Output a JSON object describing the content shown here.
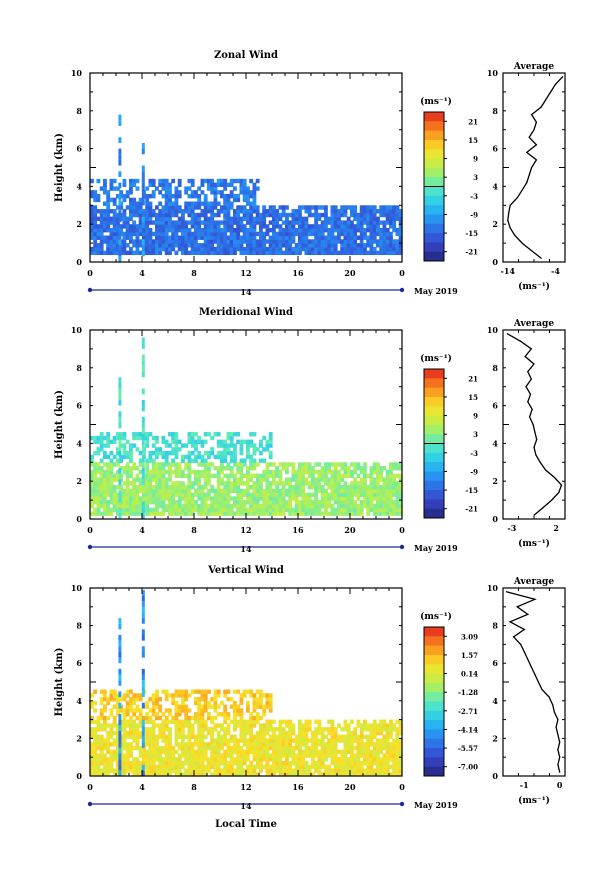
{
  "chart_data": [
    {
      "type": "heatmap",
      "title": "Zonal Wind",
      "ylabel": "Height (km)",
      "xlabel": "",
      "date_label": "May 2019",
      "day_label": "14",
      "x_ticks": [
        "0",
        "4",
        "8",
        "12",
        "16",
        "20",
        "0"
      ],
      "ylim": [
        0,
        10
      ],
      "y_ticks": [
        "0",
        "2",
        "4",
        "6",
        "8",
        "10"
      ],
      "colorbar": {
        "unit": "(ms⁻¹)",
        "ticks": [
          "21",
          "15",
          "9",
          "3",
          "-3",
          "-9",
          "-15",
          "-21"
        ],
        "range": [
          -24,
          24
        ]
      },
      "field": {
        "description_regions": [
          {
            "x_hours": [
              0,
              24
            ],
            "height_km": [
              0.5,
              3.0
            ],
            "value_ms": -14
          },
          {
            "x_hours": [
              0,
              13
            ],
            "height_km": [
              3.0,
              4.2
            ],
            "value_ms": -13
          }
        ]
      },
      "profile": {
        "title": "Average",
        "xlabel": "(ms⁻¹)",
        "x_ticks": [
          "-14",
          "-4"
        ],
        "xlim": [
          -15,
          -2
        ],
        "y_ticks": [
          "0",
          "2",
          "4",
          "6",
          "8",
          "10"
        ],
        "ylim": [
          0,
          10
        ],
        "height_km": [
          0.2,
          0.6,
          1.0,
          1.4,
          1.8,
          2.2,
          2.6,
          3.0,
          3.4,
          3.8,
          4.2,
          4.6,
          5.0,
          5.4,
          5.8,
          6.2,
          6.6,
          7.0,
          7.4,
          7.8,
          8.2,
          8.6,
          9.0,
          9.4,
          9.8
        ],
        "value_ms": [
          -7,
          -9,
          -11,
          -12.5,
          -13.5,
          -14,
          -13.8,
          -13.5,
          -12,
          -11,
          -10,
          -9.5,
          -9,
          -8,
          -10,
          -8,
          -9.5,
          -8.5,
          -8,
          -9,
          -7,
          -6,
          -5,
          -4,
          -2.5
        ]
      }
    },
    {
      "type": "heatmap",
      "title": "Meridional Wind",
      "ylabel": "Height (km)",
      "xlabel": "",
      "date_label": "May 2019",
      "day_label": "14",
      "x_ticks": [
        "0",
        "4",
        "8",
        "12",
        "16",
        "20",
        "0"
      ],
      "ylim": [
        0,
        10
      ],
      "y_ticks": [
        "0",
        "2",
        "4",
        "6",
        "8",
        "10"
      ],
      "colorbar": {
        "unit": "(ms⁻¹)",
        "ticks": [
          "21",
          "15",
          "9",
          "3",
          "-3",
          "-9",
          "-15",
          "-21"
        ],
        "range": [
          -24,
          24
        ]
      },
      "field": {
        "description_regions": [
          {
            "x_hours": [
              0,
              24
            ],
            "height_km": [
              0.2,
              3.0
            ],
            "value_ms": 4
          },
          {
            "x_hours": [
              0,
              14
            ],
            "height_km": [
              3.0,
              4.5
            ],
            "value_ms": -2
          }
        ]
      },
      "profile": {
        "title": "Average",
        "xlabel": "(ms⁻¹)",
        "x_ticks": [
          "-3",
          "2"
        ],
        "xlim": [
          -4,
          3
        ],
        "y_ticks": [
          "0",
          "2",
          "4",
          "6",
          "8",
          "10"
        ],
        "ylim": [
          0,
          10
        ],
        "height_km": [
          0.2,
          0.6,
          1.0,
          1.4,
          1.8,
          2.2,
          2.6,
          3.0,
          3.4,
          3.8,
          4.2,
          4.6,
          5.0,
          5.4,
          5.8,
          6.2,
          6.6,
          7.0,
          7.4,
          7.8,
          8.2,
          8.6,
          9.0,
          9.4,
          9.8
        ],
        "value_ms": [
          -0.5,
          0.5,
          1.5,
          2.3,
          2.6,
          1.8,
          0.8,
          0.2,
          -0.3,
          -0.5,
          -0.2,
          -0.4,
          -0.6,
          -1.0,
          -0.7,
          -1.2,
          -0.9,
          -1.4,
          -0.8,
          -1.2,
          -0.5,
          -1.5,
          -0.8,
          -2.0,
          -3.5
        ]
      }
    },
    {
      "type": "heatmap",
      "title": "Vertical Wind",
      "ylabel": "Height (km)",
      "xlabel": "Local Time",
      "date_label": "May 2019",
      "day_label": "14",
      "x_ticks": [
        "0",
        "4",
        "8",
        "12",
        "16",
        "20",
        "0"
      ],
      "ylim": [
        0,
        10
      ],
      "y_ticks": [
        "0",
        "2",
        "4",
        "6",
        "8",
        "10"
      ],
      "colorbar": {
        "unit": "(ms⁻¹)",
        "ticks": [
          "3.09",
          "1.57",
          "0.14",
          "-1.28",
          "-2.71",
          "-4.14",
          "-5.57",
          "-7.00"
        ],
        "range": [
          -7.7,
          3.8
        ]
      },
      "field": {
        "description_regions": [
          {
            "x_hours": [
              0,
              24
            ],
            "height_km": [
              0.0,
              3.0
            ],
            "value_ms": 0.6
          },
          {
            "x_hours": [
              0,
              14
            ],
            "height_km": [
              3.0,
              4.4
            ],
            "value_ms": 1.2
          }
        ]
      },
      "profile": {
        "title": "Average",
        "xlabel": "(ms⁻¹)",
        "x_ticks": [
          "-1",
          "0"
        ],
        "xlim": [
          -1.6,
          0.15
        ],
        "y_ticks": [
          "0",
          "2",
          "4",
          "6",
          "8",
          "10"
        ],
        "ylim": [
          0,
          10
        ],
        "height_km": [
          0.2,
          0.6,
          1.0,
          1.4,
          1.8,
          2.2,
          2.6,
          3.0,
          3.4,
          3.8,
          4.2,
          4.6,
          5.0,
          5.4,
          5.8,
          6.2,
          6.6,
          7.0,
          7.4,
          7.8,
          8.2,
          8.6,
          9.0,
          9.4,
          9.8
        ],
        "value_ms": [
          0.0,
          -0.05,
          0.0,
          -0.05,
          0.0,
          -0.05,
          -0.1,
          -0.05,
          -0.15,
          -0.2,
          -0.3,
          -0.5,
          -0.6,
          -0.7,
          -0.8,
          -0.9,
          -1.0,
          -1.1,
          -1.3,
          -1.0,
          -1.4,
          -0.9,
          -1.2,
          -0.7,
          -1.5
        ]
      }
    }
  ]
}
